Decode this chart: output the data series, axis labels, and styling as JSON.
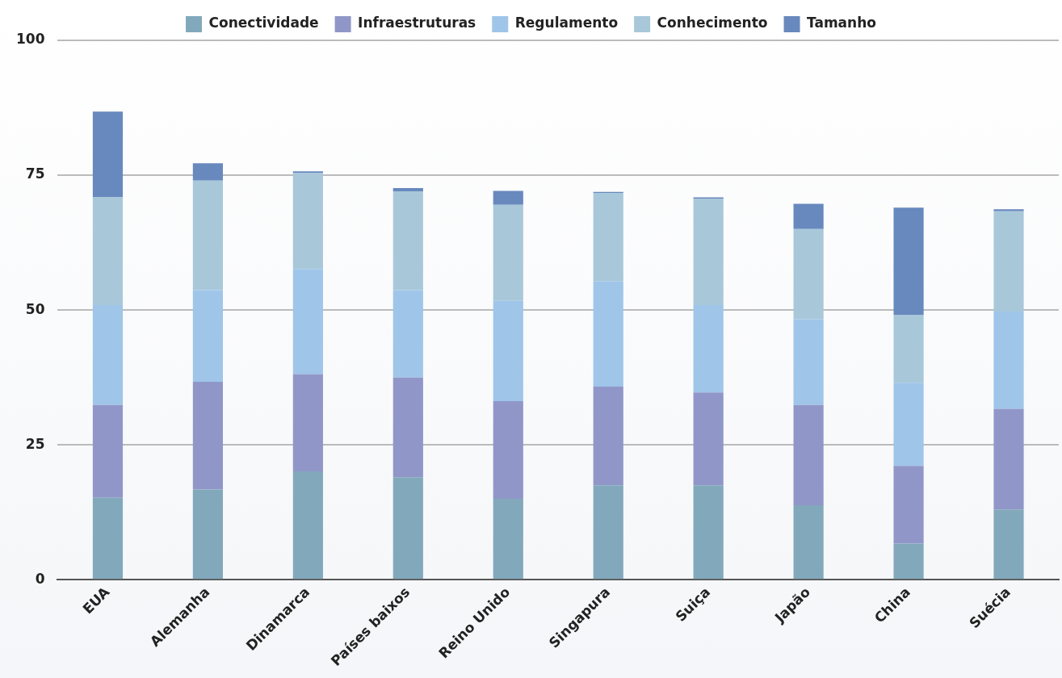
{
  "chart_data": {
    "type": "bar",
    "stacked": true,
    "categories": [
      "EUA",
      "Alemanha",
      "Dinamarca",
      "Países baixos",
      "Reino Unido",
      "Singapura",
      "Suiça",
      "Japão",
      "China",
      "Suécia"
    ],
    "series": [
      {
        "name": "Conectividade",
        "color": "#82a8bb",
        "values": [
          15.2,
          16.7,
          20.1,
          19.0,
          15.0,
          17.5,
          17.5,
          13.8,
          6.7,
          13.0
        ]
      },
      {
        "name": "Infraestruturas",
        "color": "#9097c8",
        "values": [
          17.2,
          20.0,
          18.0,
          18.5,
          18.1,
          18.3,
          17.2,
          18.6,
          14.4,
          18.7
        ]
      },
      {
        "name": "Regulamento",
        "color": "#9fc5e9",
        "values": [
          18.5,
          17.0,
          19.5,
          16.2,
          18.6,
          19.5,
          16.2,
          15.9,
          15.4,
          18.0
        ]
      },
      {
        "name": "Conhecimento",
        "color": "#a8c8da",
        "values": [
          20.0,
          20.3,
          17.8,
          18.3,
          17.8,
          16.4,
          19.7,
          16.7,
          12.6,
          18.6
        ]
      },
      {
        "name": "Tamanho",
        "color": "#6889be",
        "values": [
          15.9,
          3.2,
          0.3,
          0.6,
          2.6,
          0.2,
          0.3,
          4.7,
          19.9,
          0.4
        ]
      }
    ],
    "ylim": [
      0,
      100
    ],
    "yticks": [
      0,
      25,
      50,
      75,
      100
    ],
    "grid": "y",
    "legend": "top"
  }
}
